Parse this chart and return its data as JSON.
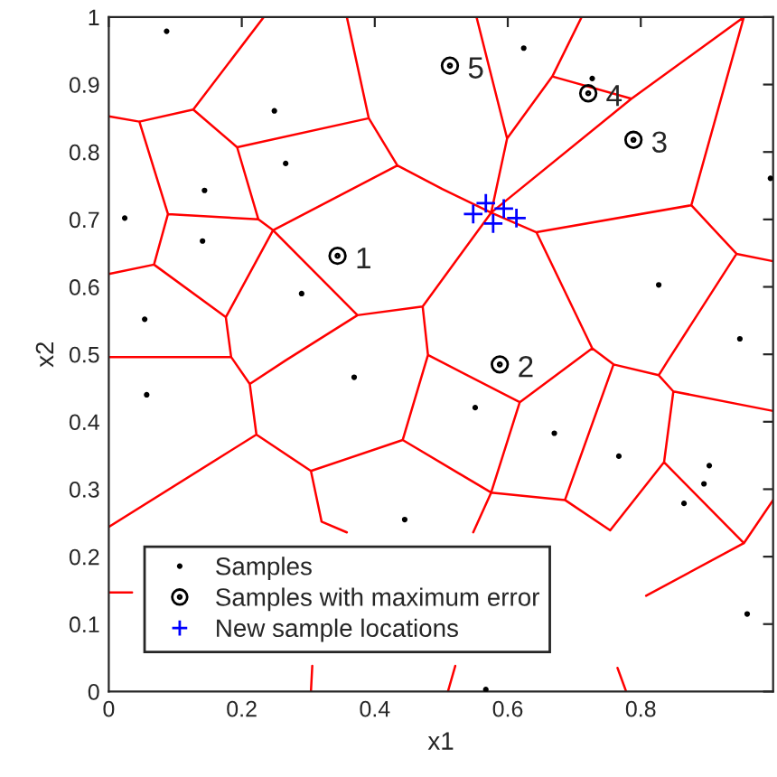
{
  "chart_data": {
    "type": "scatter",
    "xlabel": "x1",
    "ylabel": "x2",
    "xlim": [
      0,
      0.999
    ],
    "ylim": [
      0,
      1
    ],
    "xticks": [
      0,
      0.2,
      0.4,
      0.6,
      0.8
    ],
    "yticks": [
      0,
      0.1,
      0.2,
      0.3,
      0.4,
      0.5,
      0.6,
      0.7,
      0.8,
      0.9,
      1
    ],
    "grid": false,
    "legend": "bottom left",
    "series": [
      {
        "type": "line",
        "color": "#ff0000",
        "marker": "none",
        "line_style": "solid",
        "x": [
          0,
          0.046,
          null,
          0.046,
          0.127,
          null,
          0.127,
          0.233,
          null,
          0.127,
          0.193,
          null,
          0.046,
          0.089,
          null,
          0.193,
          0.391,
          null,
          0.391,
          0.358,
          null,
          0.391,
          0.434,
          null,
          0.193,
          0.225,
          null,
          0.225,
          0.089,
          null,
          0.225,
          0.247,
          null,
          0.247,
          0.434,
          null,
          0.089,
          0.068,
          null,
          0.068,
          0,
          null,
          0.068,
          0.176,
          null,
          0.247,
          0.176,
          null,
          0.247,
          0.374,
          null,
          0.176,
          0.184,
          null,
          0.374,
          0.472,
          null,
          0.472,
          0.48,
          null,
          0.374,
          0.266,
          null,
          0.266,
          0.212,
          null,
          0.184,
          0.212,
          null,
          0.184,
          0,
          null,
          0.212,
          0.222,
          null,
          0.222,
          0,
          null,
          0.222,
          0.304,
          null,
          0.304,
          0.442,
          null,
          0.442,
          0.48,
          null,
          0.304,
          0.32,
          null,
          0.32,
          0.358,
          null,
          0.442,
          0.575,
          null,
          0.48,
          0.618,
          null,
          0.618,
          0.575,
          null,
          0.618,
          0.727,
          null,
          0.727,
          0.759,
          null,
          0.759,
          0.827,
          null,
          0.827,
          0.841,
          null,
          0.827,
          0.849,
          null,
          0.849,
          0.999,
          null,
          0.849,
          0.835,
          null,
          0.759,
          0.686,
          null,
          0.575,
          0.686,
          null,
          0.686,
          0.754,
          null,
          0.835,
          0.754,
          null,
          0.835,
          0.955,
          null,
          0.955,
          0.999,
          null,
          0.955,
          0.808,
          null,
          0.575,
          0.548,
          null,
          0.434,
          0.502,
          null,
          0.502,
          0.575,
          null,
          0.472,
          0.575,
          null,
          0.575,
          0.643,
          null,
          0.575,
          0.599,
          null,
          0.599,
          0.553,
          null,
          0.599,
          0.667,
          null,
          0.667,
          0.711,
          null,
          0.667,
          0.786,
          null,
          0.786,
          0.575,
          null,
          0.786,
          0.955,
          null,
          0.643,
          0.876,
          null,
          0.876,
          0.955,
          null,
          0.876,
          0.944,
          null,
          0.944,
          0.999,
          null,
          0.944,
          0.841,
          null,
          0.643,
          0.727,
          null,
          0.306,
          0.304,
          null,
          0.521,
          0.51,
          null,
          0.765,
          0.778
        ],
        "values": [
          0.853,
          0.845,
          null,
          0.845,
          0.863,
          null,
          0.863,
          1,
          null,
          0.863,
          0.807,
          null,
          0.845,
          0.708,
          null,
          0.807,
          0.85,
          null,
          0.85,
          1,
          null,
          0.85,
          0.78,
          null,
          0.807,
          0.7,
          null,
          0.7,
          0.708,
          null,
          0.7,
          0.684,
          null,
          0.684,
          0.78,
          null,
          0.708,
          0.633,
          null,
          0.633,
          0.619,
          null,
          0.633,
          0.555,
          null,
          0.684,
          0.555,
          null,
          0.684,
          0.558,
          null,
          0.555,
          0.496,
          null,
          0.558,
          0.571,
          null,
          0.571,
          0.499,
          null,
          0.558,
          0.491,
          null,
          0.491,
          0.456,
          null,
          0.496,
          0.456,
          null,
          0.496,
          0.496,
          null,
          0.456,
          0.381,
          null,
          0.381,
          0.244,
          null,
          0.381,
          0.327,
          null,
          0.327,
          0.373,
          null,
          0.373,
          0.499,
          null,
          0.327,
          0.252,
          null,
          0.252,
          0.236,
          null,
          0.373,
          0.295,
          null,
          0.499,
          0.429,
          null,
          0.429,
          0.295,
          null,
          0.429,
          0.509,
          null,
          0.509,
          0.485,
          null,
          0.485,
          0.469,
          null,
          0.469,
          0.491,
          null,
          0.469,
          0.445,
          null,
          0.445,
          0.416,
          null,
          0.445,
          0.34,
          null,
          0.485,
          0.284,
          null,
          0.295,
          0.284,
          null,
          0.284,
          0.239,
          null,
          0.34,
          0.239,
          null,
          0.34,
          0.22,
          null,
          0.22,
          0.284,
          null,
          0.22,
          0.142,
          null,
          0.295,
          0.236,
          null,
          0.78,
          0.745,
          null,
          0.745,
          0.71,
          null,
          0.571,
          0.71,
          null,
          0.71,
          0.681,
          null,
          0.71,
          0.82,
          null,
          0.82,
          1,
          null,
          0.82,
          0.912,
          null,
          0.912,
          1,
          null,
          0.912,
          0.879,
          null,
          0.879,
          0.71,
          null,
          0.879,
          1,
          null,
          0.681,
          0.721,
          null,
          0.721,
          1,
          null,
          0.721,
          0.649,
          null,
          0.649,
          0.638,
          null,
          0.649,
          0.491,
          null,
          0.681,
          0.509,
          null,
          0.038,
          0,
          null,
          0.038,
          0,
          null,
          0.035,
          0
        ]
      },
      {
        "type": "line",
        "color": "#ff0000",
        "marker": "none",
        "line_style": "solid",
        "x": [
          0,
          0.035
        ],
        "values": [
          0.147,
          0.147
        ]
      },
      {
        "name": "Samples",
        "color": "#000000",
        "marker": "point",
        "x": [
          0.087,
          0.249,
          0.266,
          0.144,
          0.024,
          0.141,
          0.29,
          0.054,
          0.624,
          0.727,
          0.995,
          0.827,
          0.949,
          0.057,
          0.369,
          0.445,
          0.551,
          0.67,
          0.767,
          0.903,
          0.895,
          0.865,
          0.96,
          0.567
        ],
        "values": [
          0.979,
          0.861,
          0.783,
          0.743,
          0.702,
          0.668,
          0.59,
          0.552,
          0.954,
          0.909,
          0.761,
          0.603,
          0.523,
          0.44,
          0.466,
          0.255,
          0.421,
          0.383,
          0.349,
          0.335,
          0.308,
          0.279,
          0.115,
          0.003
        ]
      },
      {
        "name": "Samples with maximum error",
        "color": "#000000",
        "marker": "circle",
        "x": [
          0.344,
          0.588,
          0.789,
          0.721,
          0.513
        ],
        "values": [
          0.646,
          0.485,
          0.818,
          0.887,
          0.928
        ]
      },
      {
        "name": "New sample locations",
        "color": "#0000ff",
        "marker": "cross",
        "x": [
          0.548,
          0.567,
          0.578,
          0.594,
          0.613
        ],
        "values": [
          0.708,
          0.724,
          0.694,
          0.716,
          0.702
        ]
      }
    ],
    "annotations": [
      {
        "text": "1",
        "x": 0.344,
        "y": 0.646
      },
      {
        "text": "2",
        "x": 0.588,
        "y": 0.485
      },
      {
        "text": "3",
        "x": 0.789,
        "y": 0.818
      },
      {
        "text": "4",
        "x": 0.721,
        "y": 0.887
      },
      {
        "text": "5",
        "x": 0.513,
        "y": 0.928
      }
    ]
  }
}
